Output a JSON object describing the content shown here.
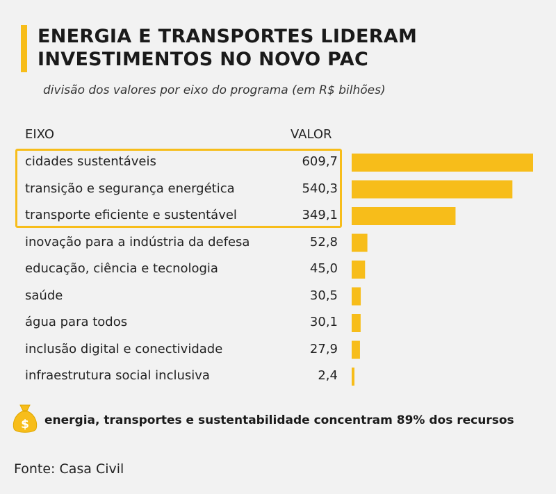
{
  "title_lines": [
    "ENERGIA E TRANSPORTES LIDERAM",
    "INVESTIMENTOS NO NOVO PAC"
  ],
  "subtitle": "divisão dos valores por eixo do programa (em R$ bilhões)",
  "columns": {
    "eixo": "EIXO",
    "valor": "VALOR"
  },
  "chart_data": {
    "type": "bar",
    "orientation": "horizontal",
    "title": "ENERGIA E TRANSPORTES LIDERAM INVESTIMENTOS NO NOVO PAC",
    "subtitle": "divisão dos valores por eixo do programa (em R$ bilhões)",
    "categories": [
      "cidades sustentáveis",
      "transição e segurança energética",
      "transporte eficiente e sustentável",
      "inovação para a indústria da defesa",
      "educação, ciência e tecnologia",
      "saúde",
      "água para todos",
      "inclusão digital e conectividade",
      "infraestrutura social inclusiva"
    ],
    "values": [
      609.7,
      540.3,
      349.1,
      52.8,
      45.0,
      30.5,
      30.1,
      27.9,
      2.4
    ],
    "value_labels": [
      "609,7",
      "540,3",
      "349,1",
      "52,8",
      "45,0",
      "30,5",
      "30,1",
      "27,9",
      "2,4"
    ],
    "highlighted": [
      0,
      1,
      2
    ],
    "xlim": [
      0,
      609.7
    ],
    "bar_color": "#f7bd1a",
    "grid": false,
    "legend": "none"
  },
  "note": "energia, transportes e sustentabilidade concentram 89% dos recursos",
  "source": "Fonte: Casa Civil",
  "colors": {
    "accent": "#f7bd1a",
    "background": "#f2f2f2"
  },
  "icons": {
    "note": "money-bag-icon"
  }
}
